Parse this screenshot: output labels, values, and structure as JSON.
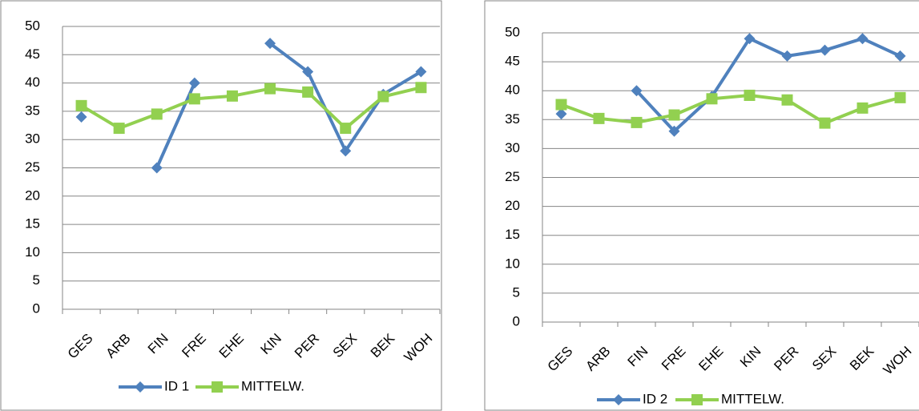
{
  "chart_data": [
    {
      "type": "line",
      "categories": [
        "GES",
        "ARB",
        "FIN",
        "FRE",
        "EHE",
        "KIN",
        "PER",
        "SEX",
        "BEK",
        "WOH"
      ],
      "series": [
        {
          "name": "ID 1",
          "color": "#4f81bd",
          "marker": "diamond",
          "values": [
            34,
            null,
            25,
            40,
            null,
            47,
            42,
            28,
            38,
            42
          ]
        },
        {
          "name": "MITTELW.",
          "color": "#92d050",
          "marker": "square",
          "values": [
            36,
            32,
            34.5,
            37.2,
            37.7,
            39,
            38.4,
            32,
            37.6,
            39.2
          ]
        }
      ],
      "ylim": [
        0,
        50
      ],
      "yticks": [
        0,
        5,
        10,
        15,
        20,
        25,
        30,
        35,
        40,
        45,
        50
      ],
      "grid": true,
      "legend": "bottom"
    },
    {
      "type": "line",
      "categories": [
        "GES",
        "ARB",
        "FIN",
        "FRE",
        "EHE",
        "KIN",
        "PER",
        "SEX",
        "BEK",
        "WOH"
      ],
      "series": [
        {
          "name": "ID 2",
          "color": "#4f81bd",
          "marker": "diamond",
          "values": [
            36,
            null,
            40,
            33,
            39,
            49,
            46,
            47,
            49,
            46
          ]
        },
        {
          "name": "MITTELW.",
          "color": "#92d050",
          "marker": "square",
          "values": [
            37.6,
            35.2,
            34.5,
            35.8,
            38.6,
            39.2,
            38.4,
            34.4,
            37,
            38.8
          ]
        }
      ],
      "ylim": [
        0,
        50
      ],
      "yticks": [
        0,
        5,
        10,
        15,
        20,
        25,
        30,
        35,
        40,
        45,
        50
      ],
      "grid": true,
      "legend": "bottom"
    }
  ]
}
